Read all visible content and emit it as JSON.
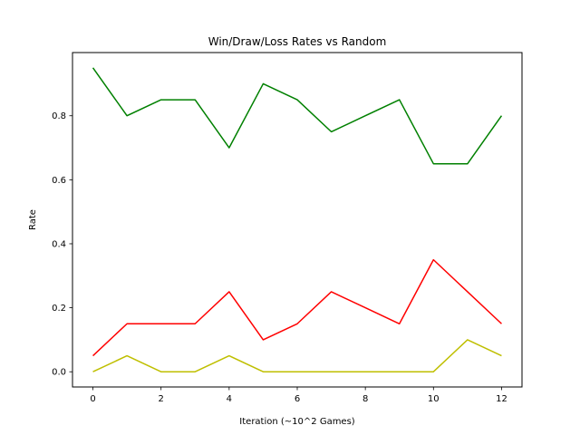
{
  "chart_data": {
    "type": "line",
    "title": "Win/Draw/Loss Rates vs Random",
    "xlabel": "Iteration (~10^2 Games)",
    "ylabel": "Rate",
    "x": [
      0,
      1,
      2,
      3,
      4,
      5,
      6,
      7,
      8,
      9,
      10,
      11,
      12
    ],
    "xlim": [
      -0.6,
      12.6
    ],
    "ylim": [
      -0.0475,
      0.9975
    ],
    "xticks": [
      0,
      2,
      4,
      6,
      8,
      10,
      12
    ],
    "xtick_labels": [
      "0",
      "2",
      "4",
      "6",
      "8",
      "10",
      "12"
    ],
    "yticks": [
      0.0,
      0.2,
      0.4,
      0.6,
      0.8
    ],
    "ytick_labels": [
      "0.0",
      "0.2",
      "0.4",
      "0.6",
      "0.8"
    ],
    "grid": false,
    "legend": "none",
    "series": [
      {
        "color": "#008000",
        "values": [
          0.95,
          0.8,
          0.85,
          0.85,
          0.7,
          0.9,
          0.85,
          0.75,
          0.8,
          0.85,
          0.65,
          0.65,
          0.8
        ]
      },
      {
        "color": "#ff0000",
        "values": [
          0.05,
          0.15,
          0.15,
          0.15,
          0.25,
          0.1,
          0.15,
          0.25,
          0.2,
          0.15,
          0.35,
          0.25,
          0.15
        ]
      },
      {
        "color": "#bfbf00",
        "values": [
          0.0,
          0.05,
          0.0,
          0.0,
          0.05,
          0.0,
          0.0,
          0.0,
          0.0,
          0.0,
          0.0,
          0.1,
          0.05
        ]
      }
    ]
  }
}
